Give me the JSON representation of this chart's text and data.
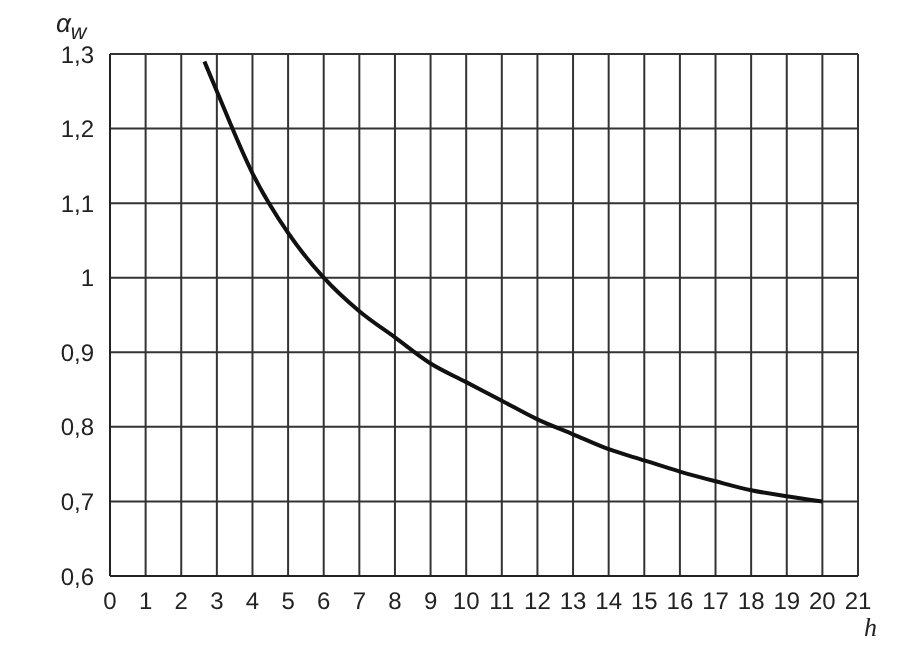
{
  "chart_data": {
    "type": "line",
    "xlabel": "h",
    "ylabel": "α$_{w}$",
    "x": [
      2.65,
      3,
      4,
      5,
      6,
      7,
      8,
      9,
      10,
      11,
      12,
      13,
      14,
      15,
      16,
      17,
      18,
      19,
      20
    ],
    "series": [
      {
        "color": "#111111",
        "values": [
          1.29,
          1.25,
          1.14,
          1.06,
          1.0,
          0.955,
          0.92,
          0.885,
          0.86,
          0.835,
          0.81,
          0.79,
          0.77,
          0.755,
          0.74,
          0.727,
          0.715,
          0.707,
          0.7
        ]
      }
    ],
    "xlim": [
      0,
      21
    ],
    "xticks": [
      0,
      1,
      2,
      3,
      4,
      5,
      6,
      7,
      8,
      9,
      10,
      11,
      12,
      13,
      14,
      15,
      16,
      17,
      18,
      19,
      20,
      21
    ],
    "ylim": [
      0.6,
      1.3
    ],
    "yticks": [
      {
        "value": 0.6,
        "label": "0,6"
      },
      {
        "value": 0.7,
        "label": "0,7"
      },
      {
        "value": 0.8,
        "label": "0,8"
      },
      {
        "value": 0.9,
        "label": "0,9"
      },
      1,
      {
        "value": 1.1,
        "label": "1,1"
      },
      {
        "value": 1.2,
        "label": "1,2"
      },
      {
        "value": 1.3,
        "label": "1,3"
      }
    ],
    "grid": true,
    "marker": "none",
    "line_style": "solid"
  }
}
